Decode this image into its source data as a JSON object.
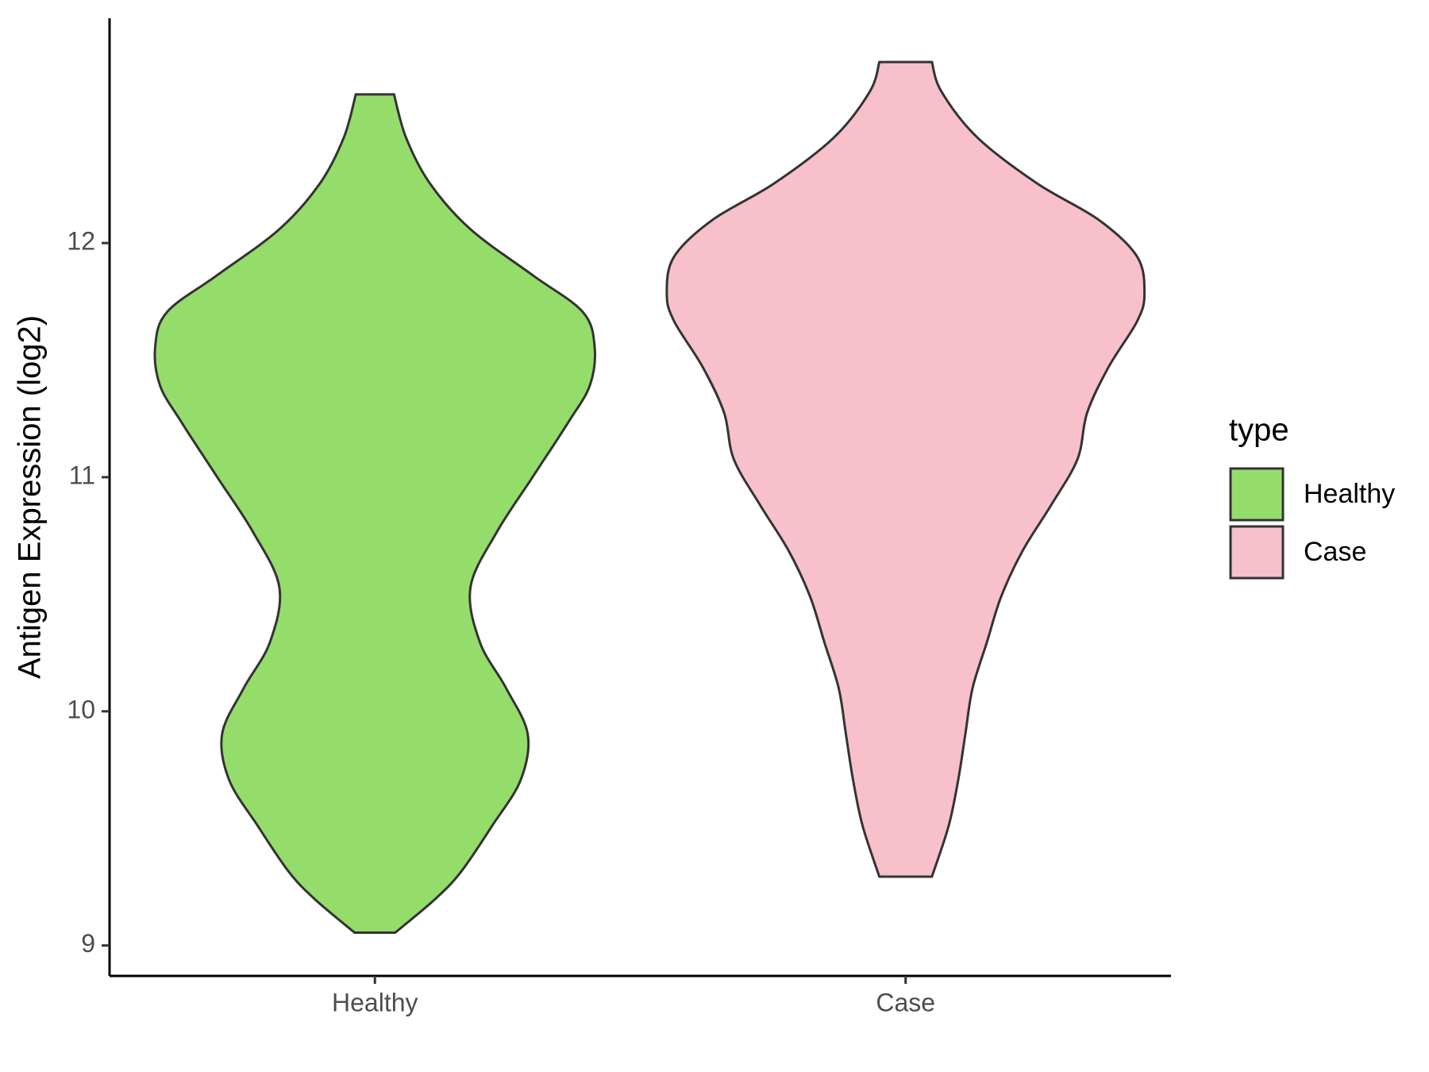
{
  "chart_data": {
    "type": "violin",
    "y_label": "Antigen Expression (log2)",
    "categories": [
      "Healthy",
      "Case"
    ],
    "ylim": [
      8.87,
      12.96
    ],
    "yticks": [
      9,
      10,
      11,
      12
    ],
    "legend_title": "type",
    "legend": "right",
    "series": [
      {
        "name": "Healthy",
        "color": "#95dd6b",
        "y": [
          9.055,
          9.196,
          9.314,
          9.51,
          9.706,
          9.902,
          10.098,
          10.294,
          10.529,
          10.765,
          11.0,
          11.235,
          11.392,
          11.557,
          11.706,
          11.863,
          12.059,
          12.255,
          12.451,
          12.635
        ],
        "widths": [
          0.085,
          0.25,
          0.36,
          0.49,
          0.61,
          0.64,
          0.55,
          0.44,
          0.4,
          0.51,
          0.66,
          0.81,
          0.9,
          0.92,
          0.87,
          0.66,
          0.4,
          0.23,
          0.13,
          0.08
        ]
      },
      {
        "name": "Case",
        "color": "#f8c0cb",
        "y": [
          9.294,
          9.51,
          9.706,
          9.902,
          10.098,
          10.294,
          10.49,
          10.686,
          10.882,
          11.078,
          11.275,
          11.471,
          11.667,
          11.784,
          11.941,
          12.098,
          12.255,
          12.451,
          12.647,
          12.773
        ],
        "widths": [
          0.11,
          0.18,
          0.22,
          0.25,
          0.28,
          0.34,
          0.4,
          0.49,
          0.61,
          0.72,
          0.76,
          0.85,
          0.97,
          1.0,
          0.97,
          0.81,
          0.55,
          0.3,
          0.15,
          0.11
        ]
      }
    ]
  }
}
